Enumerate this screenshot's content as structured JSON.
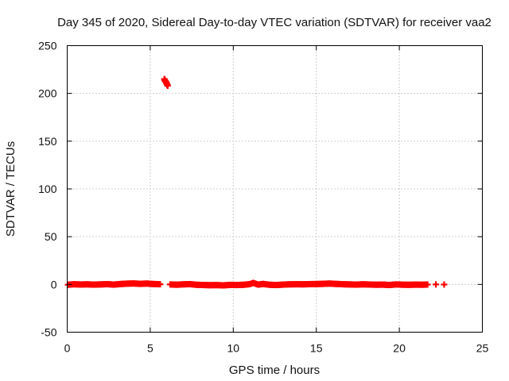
{
  "chart_data": {
    "type": "scatter",
    "title": "Day 345 of 2020, Sidereal Day-to-day VTEC variation (SDTVAR) for receiver vaa2",
    "xlabel": "GPS time / hours",
    "ylabel": "SDTVAR / TECUs",
    "xlim": [
      0,
      25
    ],
    "ylim": [
      -50,
      250
    ],
    "xticks": [
      0,
      5,
      10,
      15,
      20,
      25
    ],
    "xtick_labels": [
      "0",
      "5",
      "10",
      "15",
      "20",
      "25"
    ],
    "yticks": [
      -50,
      0,
      50,
      100,
      150,
      200,
      250
    ],
    "ytick_labels": [
      "-50",
      "0",
      "50",
      "100",
      "150",
      "200",
      "250"
    ],
    "grid": true,
    "marker": "plus",
    "color": "#ff0000",
    "series": [
      {
        "name": "SDTVAR",
        "points": [
          [
            0.05,
            -0.3
          ],
          [
            0.4,
            0.2
          ],
          [
            0.8,
            -0.1
          ],
          [
            1.2,
            0.1
          ],
          [
            1.6,
            -0.2
          ],
          [
            2.0,
            0.0
          ],
          [
            2.4,
            0.3
          ],
          [
            2.8,
            -0.2
          ],
          [
            3.2,
            0.4
          ],
          [
            3.6,
            0.8
          ],
          [
            4.0,
            1.0
          ],
          [
            4.4,
            0.6
          ],
          [
            4.8,
            0.9
          ],
          [
            5.2,
            0.4
          ],
          [
            5.6,
            0.2
          ],
          [
            6.2,
            0.0
          ],
          [
            6.6,
            -0.3
          ],
          [
            7.0,
            0.1
          ],
          [
            7.4,
            0.3
          ],
          [
            7.8,
            -0.4
          ],
          [
            8.2,
            -0.6
          ],
          [
            8.6,
            -0.8
          ],
          [
            9.0,
            -0.7
          ],
          [
            9.4,
            -1.0
          ],
          [
            9.8,
            -0.5
          ],
          [
            10.2,
            -0.6
          ],
          [
            10.6,
            -0.4
          ],
          [
            11.0,
            0.3
          ],
          [
            11.2,
            1.6
          ],
          [
            11.5,
            -0.2
          ],
          [
            11.8,
            0.5
          ],
          [
            12.2,
            -0.4
          ],
          [
            12.6,
            -0.6
          ],
          [
            13.0,
            -0.2
          ],
          [
            13.4,
            0.1
          ],
          [
            13.8,
            0.2
          ],
          [
            14.2,
            0.1
          ],
          [
            14.6,
            0.3
          ],
          [
            15.0,
            0.4
          ],
          [
            15.4,
            0.6
          ],
          [
            15.8,
            0.9
          ],
          [
            16.2,
            0.5
          ],
          [
            16.6,
            0.2
          ],
          [
            17.0,
            0.0
          ],
          [
            17.4,
            -0.2
          ],
          [
            17.8,
            0.1
          ],
          [
            18.2,
            -0.1
          ],
          [
            18.6,
            -0.3
          ],
          [
            19.0,
            -0.2
          ],
          [
            19.4,
            -0.6
          ],
          [
            19.8,
            0.0
          ],
          [
            20.2,
            -0.3
          ],
          [
            20.6,
            -0.4
          ],
          [
            21.0,
            -0.2
          ],
          [
            21.4,
            -0.3
          ],
          [
            21.7,
            -0.1
          ],
          [
            22.2,
            0.0
          ],
          [
            22.7,
            -0.1
          ],
          [
            5.85,
            215.0
          ],
          [
            5.9,
            213.0
          ],
          [
            5.95,
            212.0
          ],
          [
            6.0,
            210.0
          ],
          [
            6.05,
            208.0
          ]
        ]
      }
    ]
  }
}
